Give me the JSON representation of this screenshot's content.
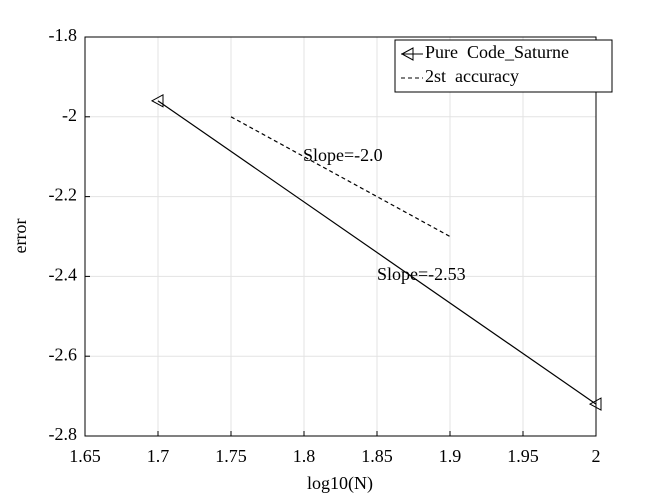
{
  "chart_data": {
    "type": "line",
    "x_label": "log10(N)",
    "y_label": "error",
    "series": [
      {
        "name": "Pure  Code_Saturne",
        "color": "#000000",
        "marker": "triangle-left",
        "linestyle": "solid",
        "x": [
          1.7,
          2
        ],
        "values": [
          -1.96,
          -2.72
        ]
      },
      {
        "name": "2st  accuracy",
        "color": "#000000",
        "marker": "none",
        "linestyle": "dashed",
        "x": [
          1.75,
          1.9
        ],
        "values": [
          -2.0,
          -2.3
        ]
      }
    ],
    "annotations": [
      "Slope=-2.0",
      "Slope=-2.53"
    ],
    "xlim": [
      1.65,
      2
    ],
    "xticks": [
      1.65,
      1.7,
      1.75,
      1.8,
      1.85,
      1.9,
      1.95,
      2
    ],
    "ylim": [
      -2.8,
      -1.8
    ],
    "yticks": [
      -2.8,
      -2.6,
      -2.4,
      -2.2,
      -2,
      -1.8
    ],
    "grid": true,
    "legend": "upper-right"
  }
}
